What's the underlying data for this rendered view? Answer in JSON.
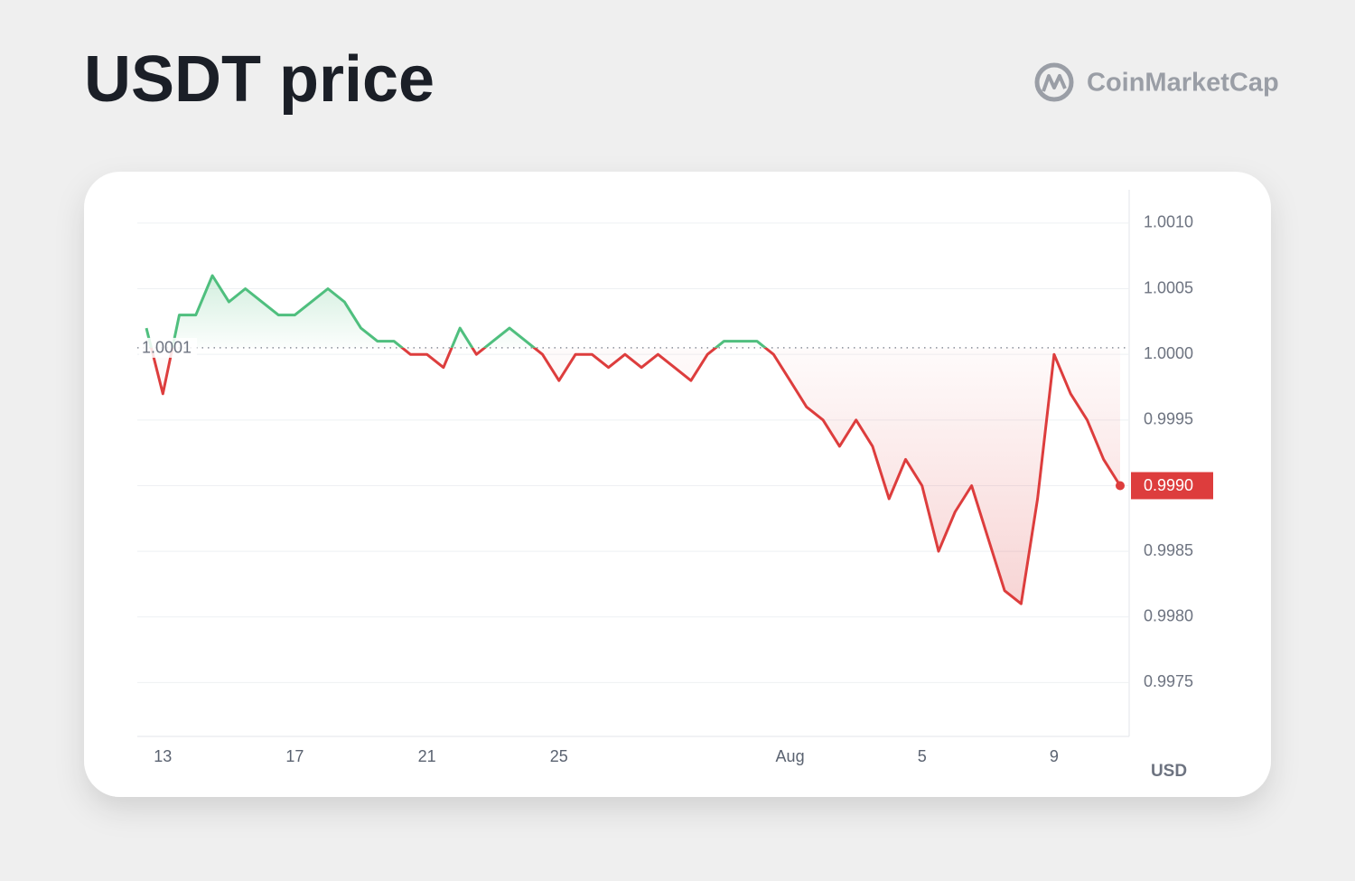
{
  "chart_data": {
    "type": "line",
    "title": "USDT price",
    "brand": "CoinMarketCap",
    "y_unit": "USD",
    "categories": [
      null,
      "13",
      null,
      null,
      null,
      null,
      null,
      null,
      null,
      "17",
      null,
      null,
      null,
      null,
      null,
      null,
      null,
      "21",
      null,
      null,
      null,
      null,
      null,
      null,
      null,
      "25",
      null,
      null,
      null,
      null,
      null,
      null,
      null,
      null,
      null,
      null,
      null,
      null,
      null,
      "Aug",
      null,
      null,
      null,
      null,
      null,
      null,
      null,
      "5",
      null,
      null,
      null,
      null,
      null,
      null,
      null,
      "9",
      null,
      null,
      null,
      null
    ],
    "values": [
      1.0002,
      0.9997,
      1.0003,
      1.0003,
      1.0006,
      1.0004,
      1.0005,
      1.0004,
      1.0003,
      1.0003,
      1.0004,
      1.0005,
      1.0004,
      1.0002,
      1.0001,
      1.0001,
      1.0,
      1.0,
      0.9999,
      1.0002,
      1.0,
      1.0001,
      1.0002,
      1.0001,
      1.0,
      0.9998,
      1.0,
      1.0,
      0.9999,
      1.0,
      0.9999,
      1.0,
      0.9999,
      0.9998,
      1.0,
      1.0001,
      1.0001,
      1.0001,
      1.0,
      0.9998,
      0.9996,
      0.9995,
      0.9993,
      0.9995,
      0.9993,
      0.9989,
      0.9992,
      0.999,
      0.9985,
      0.9988,
      0.999,
      0.9986,
      0.9982,
      0.9981,
      0.9989,
      1.0,
      0.9997,
      0.9995,
      0.9992,
      0.999
    ],
    "current_label": "0.9990",
    "baseline": {
      "value": 1.00005,
      "label": "1.0001"
    },
    "ylim": [
      0.99709,
      1.00124
    ],
    "yticks": [
      {
        "value": 1.001,
        "label": "1.0010"
      },
      {
        "value": 1.0005,
        "label": "1.0005"
      },
      {
        "value": 1.0,
        "label": "1.0000"
      },
      {
        "value": 0.9995,
        "label": "0.9995"
      },
      {
        "value": 0.999,
        "label": "0.9990"
      },
      {
        "value": 0.9985,
        "label": "0.9985"
      },
      {
        "value": 0.998,
        "label": "0.9980"
      },
      {
        "value": 0.9975,
        "label": "0.9975"
      }
    ],
    "grid": true,
    "up_color": "#4fbf7e",
    "down_color": "#dd3d3d"
  }
}
